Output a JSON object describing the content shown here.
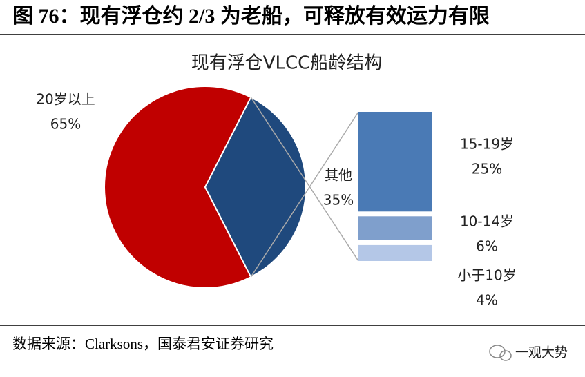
{
  "header": {
    "title": "图 76：现有浮仓约 2/3 为老船，可释放有效运力有限"
  },
  "chart_data": {
    "type": "pie",
    "title": "现有浮仓VLCC船龄结构",
    "categories": [
      "20岁以上",
      "其他"
    ],
    "values": [
      65,
      35
    ],
    "value_labels": [
      "65%",
      "35%"
    ],
    "colors": [
      "#c00000",
      "#1f497d"
    ],
    "breakdown": {
      "categories": [
        "15-19岁",
        "10-14岁",
        "小于10岁"
      ],
      "values": [
        25,
        6,
        4
      ],
      "value_labels": [
        "25%",
        "6%",
        "4%"
      ],
      "colors": [
        "#4a7ab5",
        "#7f9fcc",
        "#b4c7e7"
      ]
    }
  },
  "footer": {
    "source": "数据来源：Clarksons，国泰君安证券研究",
    "watermark": "一观大势"
  }
}
